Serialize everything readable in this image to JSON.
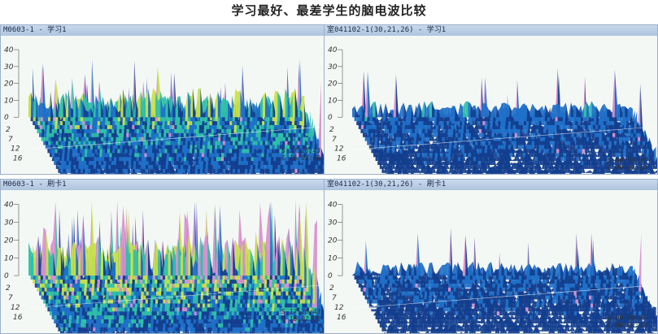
{
  "page": {
    "title": "学习最好、最差学生的脑电波比较"
  },
  "colors": {
    "spike": "#d98fd0",
    "high": "#c8e04a",
    "mid": "#2fc0a8",
    "low": "#1f70c8",
    "base": "#133e8e",
    "bg": "#f4f8f4"
  },
  "panels": [
    {
      "title": "M0603-1 - 学习1",
      "z_ticks": [
        "40",
        "30",
        "20",
        "10",
        "0"
      ],
      "depth_ticks": [
        "2",
        "7",
        "12",
        "16"
      ],
      "time_s": "S 17:26:43",
      "time_c": "C 16:02:08"
    },
    {
      "title": "室041102-1(30,21,26) - 学习1",
      "z_ticks": [
        "40",
        "30",
        "20",
        "10",
        "0"
      ],
      "depth_ticks": [
        "2",
        "7",
        "12",
        "16"
      ],
      "time_s": "S 09:50:35",
      "time_c": "C 09:02:10"
    },
    {
      "title": "M0603-1 - 刷卡1",
      "z_ticks": [
        "40",
        "30",
        "20",
        "10",
        "0"
      ],
      "depth_ticks": [
        "2",
        "7",
        "12",
        "16"
      ],
      "time_s": "S 17:26:43",
      "time_c": "C 16:02:08"
    },
    {
      "title": "室041102-1(30,21,26) - 刷卡1",
      "z_ticks": [
        "40",
        "30",
        "20",
        "10",
        "0"
      ],
      "depth_ticks": [
        "2",
        "7",
        "12",
        "16"
      ],
      "time_s": "S 09:50:35",
      "time_c": "C 09:02:10"
    }
  ]
}
